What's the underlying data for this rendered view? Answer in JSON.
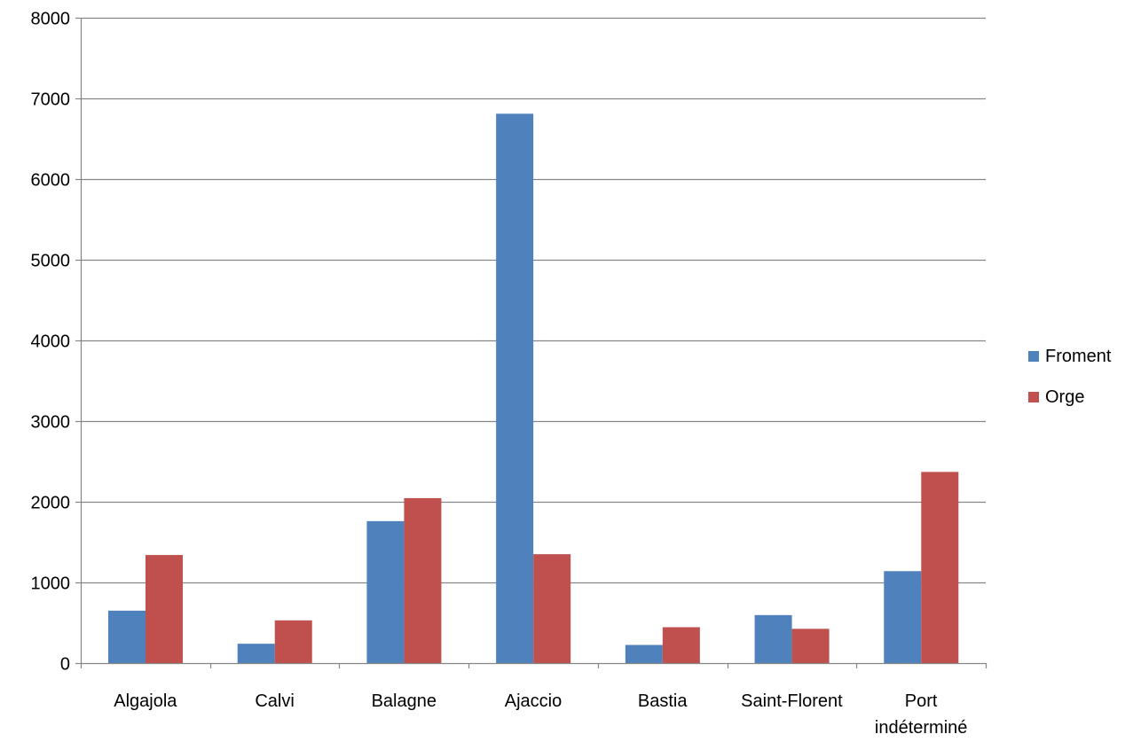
{
  "chart_data": {
    "type": "bar",
    "title": "",
    "xlabel": "",
    "ylabel": "",
    "categories": [
      [
        "Algajola"
      ],
      [
        "Calvi"
      ],
      [
        "Balagne"
      ],
      [
        "Ajaccio"
      ],
      [
        "Bastia"
      ],
      [
        "Saint-Florent"
      ],
      [
        "Port",
        "indéterminé"
      ]
    ],
    "series": [
      {
        "name": "Froment",
        "color": "#4F81BD",
        "values": [
          650,
          240,
          1760,
          6810,
          225,
          595,
          1140
        ]
      },
      {
        "name": "Orge",
        "color": "#C0504D",
        "values": [
          1340,
          530,
          2045,
          1350,
          445,
          425,
          2370
        ]
      }
    ],
    "ylim": [
      0,
      8000
    ],
    "yticks": [
      0,
      1000,
      2000,
      3000,
      4000,
      5000,
      6000,
      7000,
      8000
    ],
    "grid": true,
    "legend_position": "right"
  }
}
